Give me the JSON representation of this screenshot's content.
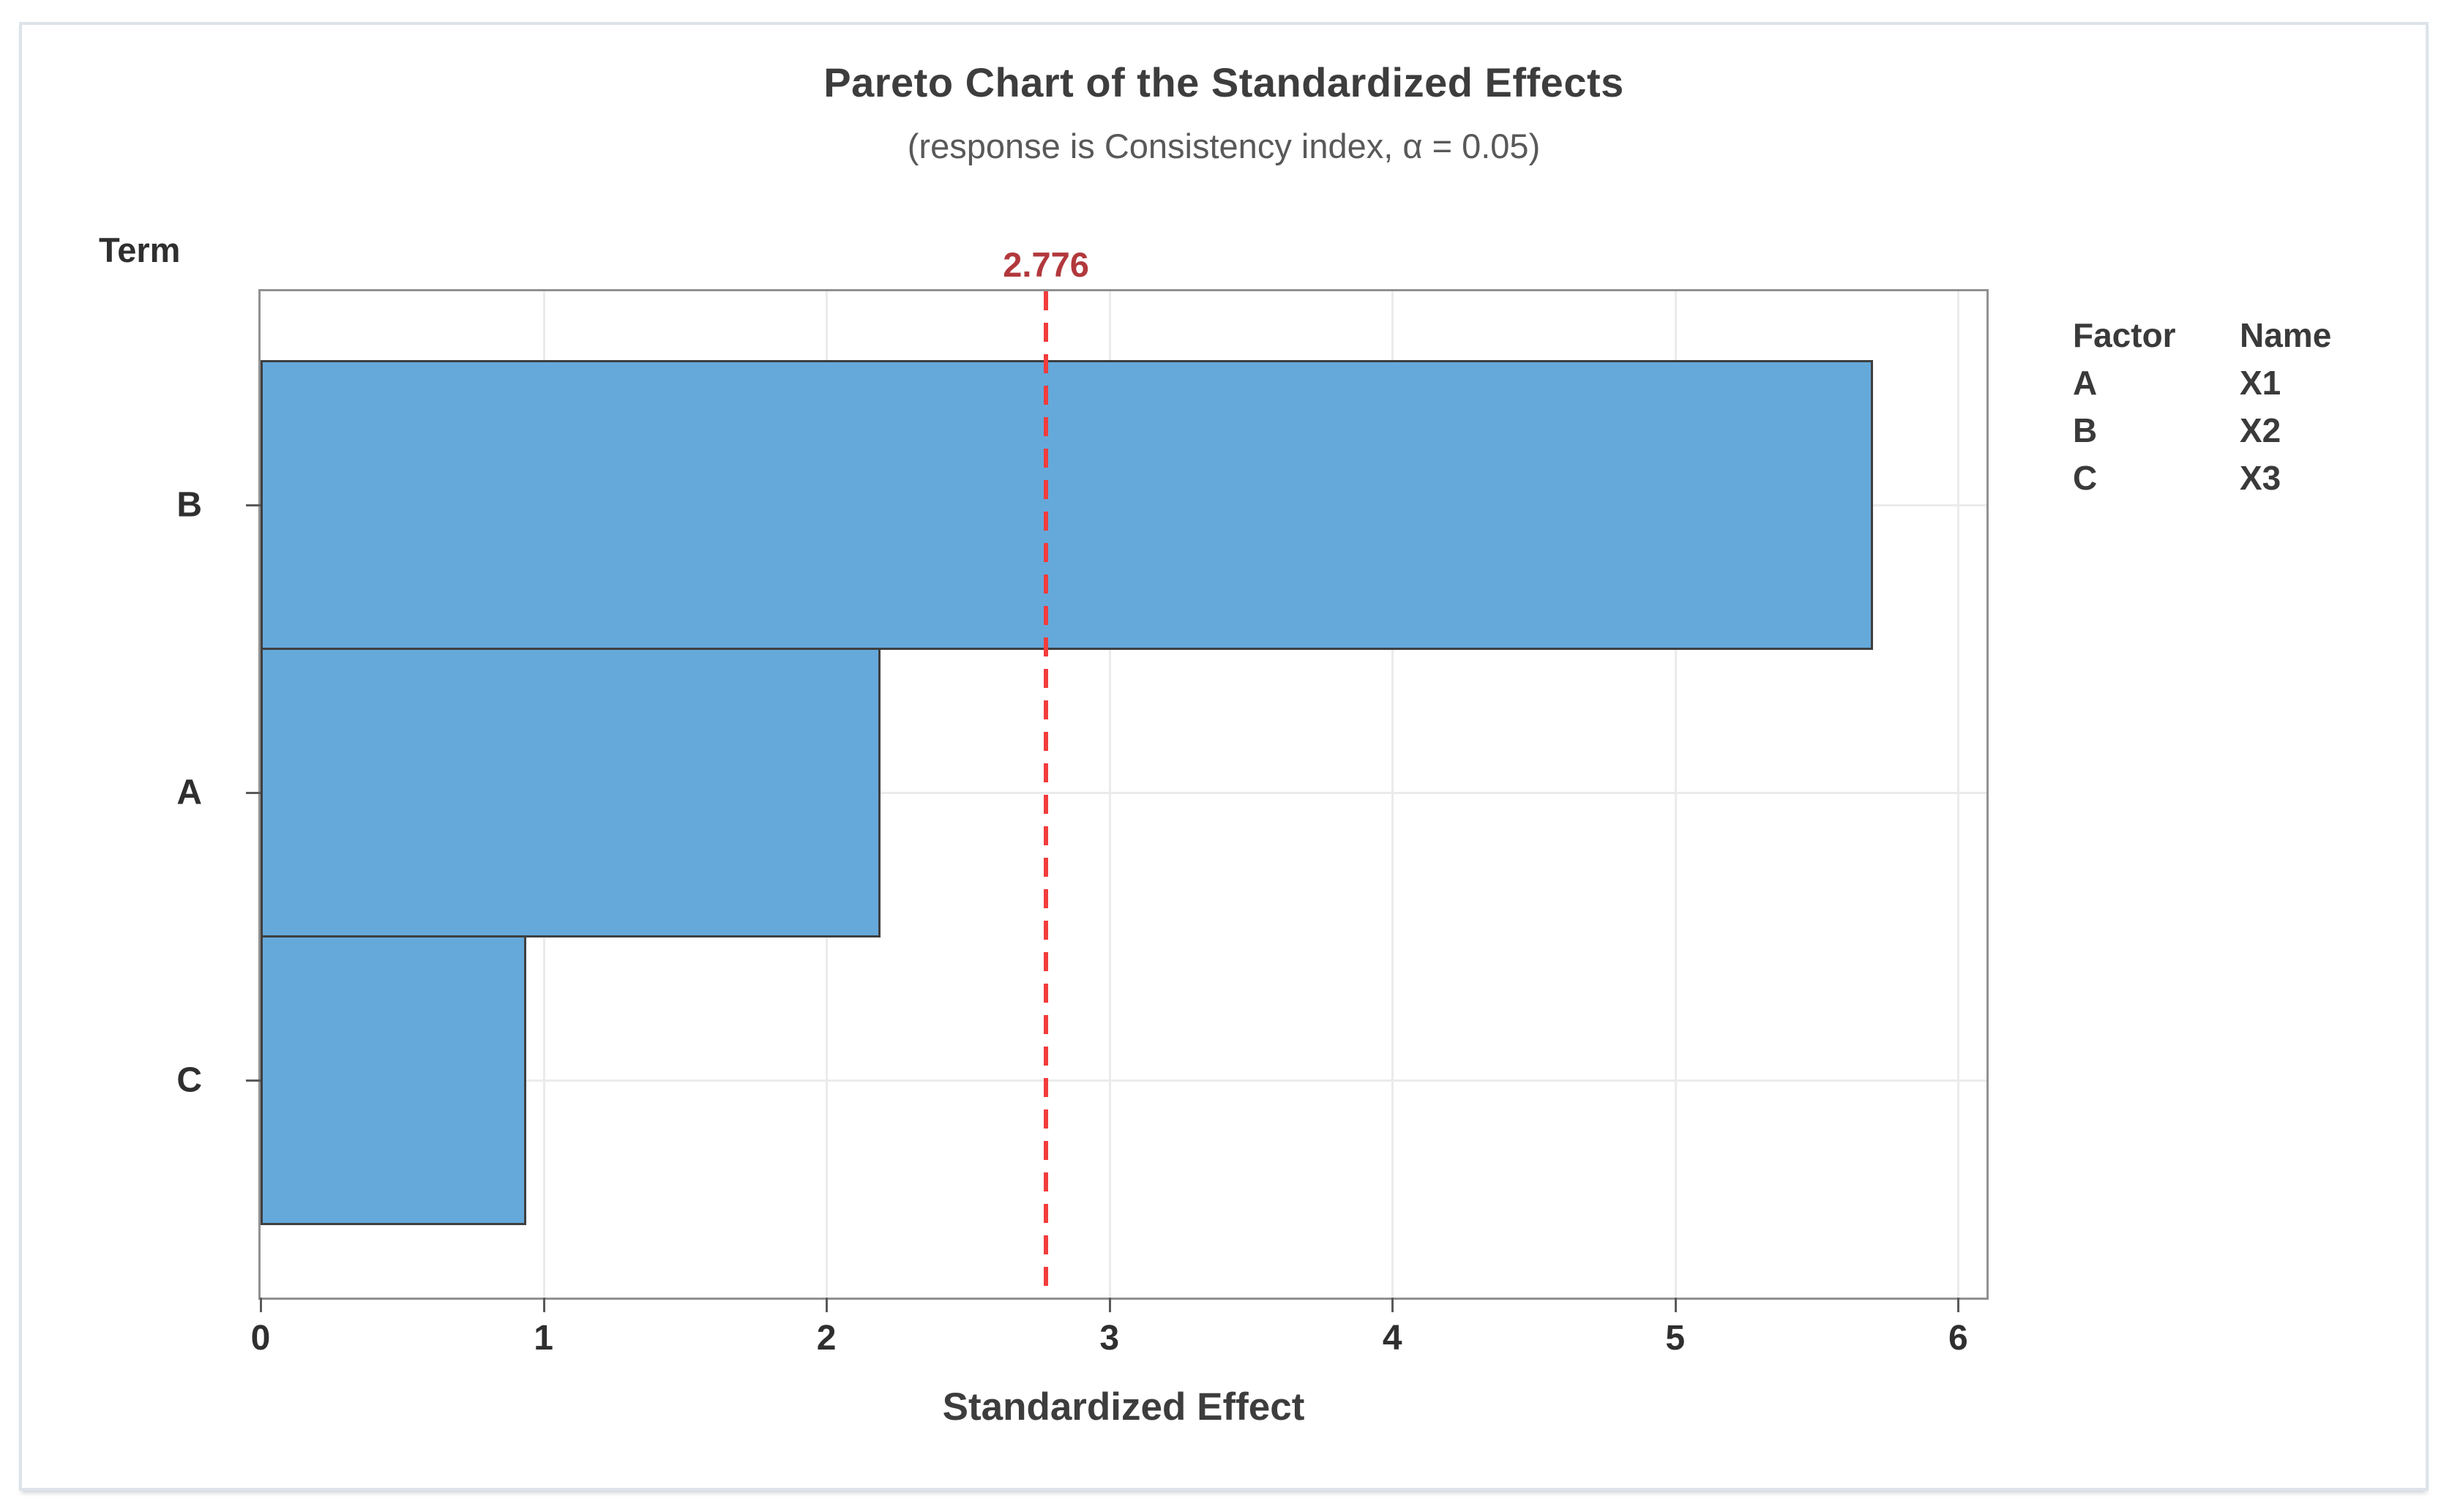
{
  "chart_data": {
    "type": "bar",
    "orientation": "horizontal",
    "title": "Pareto Chart of the Standardized Effects",
    "subtitle": "(response is Consistency index, α = 0.05)",
    "y_axis_title": "Term",
    "xlabel": "Standardized Effect",
    "categories": [
      "B",
      "A",
      "C"
    ],
    "values": [
      5.7,
      2.19,
      0.94
    ],
    "x_ticks": [
      "0",
      "1",
      "2",
      "3",
      "4",
      "5",
      "6"
    ],
    "xlim": [
      0,
      6.1
    ],
    "grid": "on",
    "reference_line": {
      "value": 2.776,
      "label": "2.776"
    },
    "colors": {
      "bar_fill": "#65a9db",
      "bar_border": "#3f3f3f",
      "ref_line": "#f23c3c",
      "ref_label": "#b2383c"
    },
    "legend": {
      "position": "right",
      "headers": [
        "Factor",
        "Name"
      ],
      "rows": [
        {
          "factor": "A",
          "name": "X1"
        },
        {
          "factor": "B",
          "name": "X2"
        },
        {
          "factor": "C",
          "name": "X3"
        }
      ]
    }
  }
}
